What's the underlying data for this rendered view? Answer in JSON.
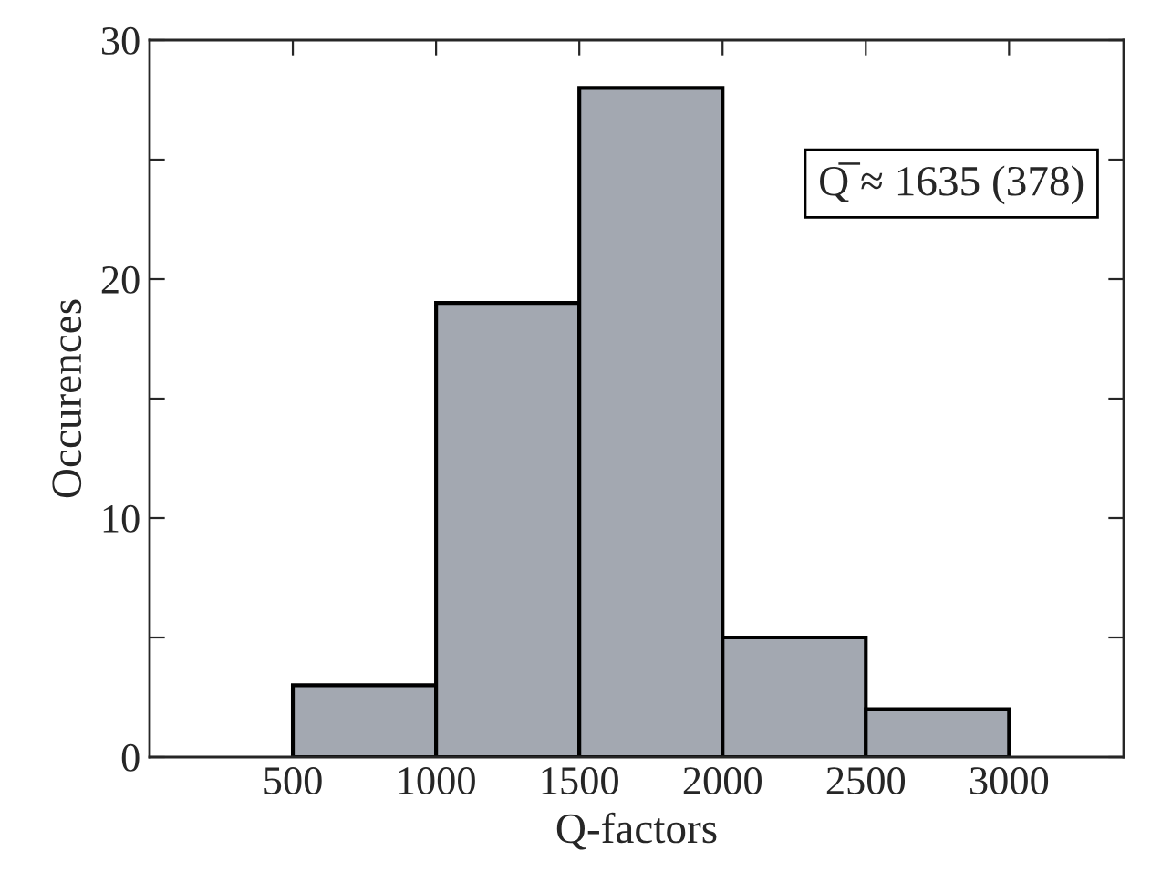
{
  "chart_data": {
    "type": "histogram",
    "xlabel": "Q-factors",
    "ylabel": "Occurences",
    "bins": [
      500,
      1000,
      1500,
      2000,
      2500,
      3000
    ],
    "values": [
      3,
      19,
      28,
      5,
      2
    ],
    "color": "#a3a8b1",
    "xlim": [
      0,
      3400
    ],
    "xticks": [
      500,
      1000,
      1500,
      2000,
      2500,
      3000
    ],
    "ylim": [
      0,
      30
    ],
    "yticks": [
      0,
      {
        "value": 5,
        "label": null
      },
      10,
      {
        "value": 15,
        "label": null
      },
      20,
      {
        "value": 25,
        "label": null
      },
      30
    ],
    "annotations": [
      "Q̅ ≈ 1635 (378)"
    ],
    "grid": false,
    "legend": false
  }
}
